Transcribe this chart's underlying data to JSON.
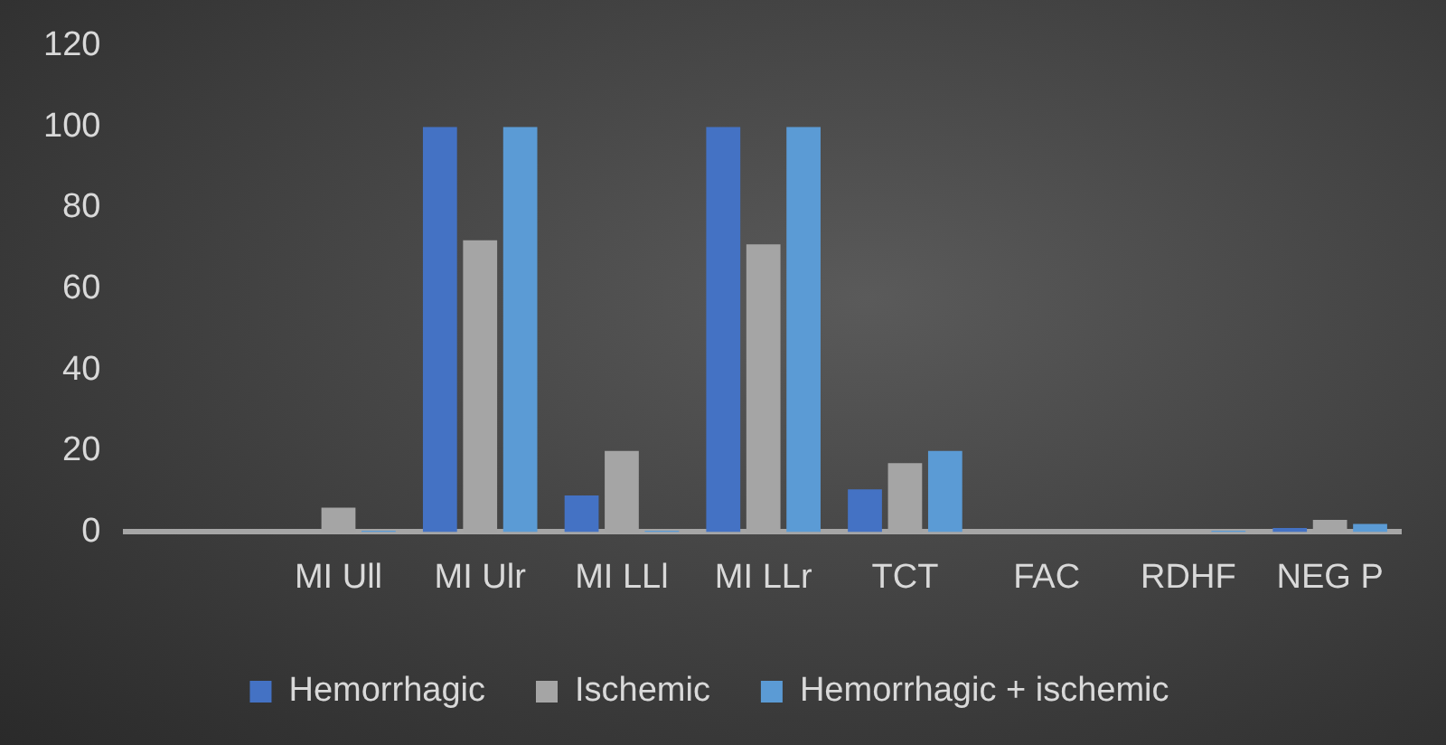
{
  "chart_data": {
    "type": "bar",
    "categories": [
      null,
      "MI Ull",
      "MI Ulr",
      "MI LLl",
      "MI LLr",
      "TCT",
      "FAC",
      "RDHF",
      "NEG P"
    ],
    "series": [
      {
        "name": "Hemorrhagic",
        "color": "#4472c4",
        "values": [
          0,
          0,
          100,
          9,
          100,
          10.5,
          0,
          0,
          1
        ]
      },
      {
        "name": "Ischemic",
        "color": "#a5a5a5",
        "values": [
          0,
          6,
          72,
          20,
          71,
          17,
          0,
          0,
          3
        ]
      },
      {
        "name": "Hemorrhagic + ischemic",
        "color": "#5b9bd5",
        "values": [
          0,
          0.3,
          100,
          0.3,
          100,
          20,
          0,
          0.3,
          2
        ]
      }
    ],
    "ylim": [
      0,
      120
    ],
    "yticks": [
      0,
      20,
      40,
      60,
      80,
      100,
      120
    ],
    "grid": false,
    "legend": "bottom"
  }
}
